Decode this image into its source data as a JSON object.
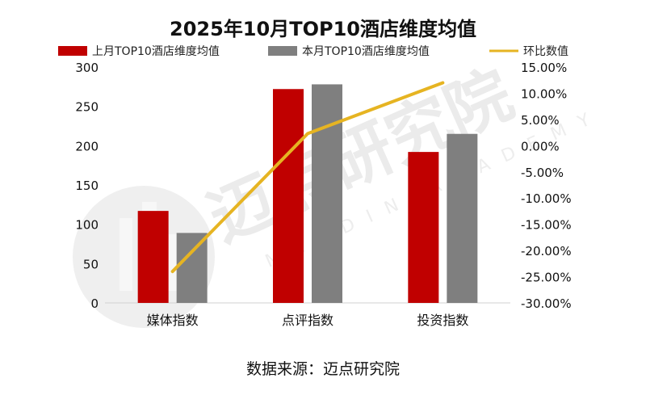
{
  "chart_data": {
    "type": "bar",
    "title": "2025年10月TOP10酒店维度均值",
    "categories": [
      "媒体指数",
      "点评指数",
      "投资指数"
    ],
    "series": [
      {
        "name": "上月TOP10酒店维度均值",
        "kind": "bar",
        "axis": "left",
        "color": "#c00000",
        "values": [
          117,
          272,
          192
        ]
      },
      {
        "name": "本月TOP10酒店维度均值",
        "kind": "bar",
        "axis": "left",
        "color": "#7f7f7f",
        "values": [
          89,
          278,
          215
        ]
      },
      {
        "name": "环比数值",
        "kind": "line",
        "axis": "right",
        "color": "#e6b422",
        "values": [
          -24.0,
          2.3,
          12.0
        ]
      }
    ],
    "y_left": {
      "min": 0,
      "max": 300,
      "step": 50,
      "tick_labels": [
        "0",
        "50",
        "100",
        "150",
        "200",
        "250",
        "300"
      ]
    },
    "y_right": {
      "min": -30,
      "max": 15,
      "step": 5,
      "tick_labels": [
        "-30.00%",
        "-25.00%",
        "-20.00%",
        "-15.00%",
        "-10.00%",
        "-5.00%",
        "0.00%",
        "5.00%",
        "10.00%",
        "15.00%"
      ]
    },
    "legend_position": "top",
    "grid": false
  },
  "watermark": {
    "text": "迈点研究院",
    "sub": "MEADIN ACADEMY"
  },
  "source": "数据来源：迈点研究院"
}
